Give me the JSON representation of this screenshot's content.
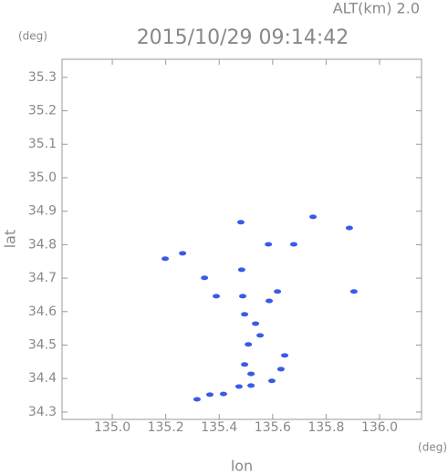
{
  "chart_data": {
    "type": "scatter",
    "title": "2015/10/29 09:14:42",
    "subtitle": "ALT(km) 2.0",
    "y_unit": "(deg)",
    "x_unit": "(deg)",
    "xlabel": "lon",
    "ylabel": "lat",
    "color": "#3a5ae8",
    "x": [
      135.198,
      135.263,
      135.345,
      135.389,
      135.488,
      135.495,
      135.536,
      135.509,
      135.553,
      135.587,
      135.618,
      135.584,
      135.751,
      135.904,
      135.887,
      135.645,
      135.631,
      135.597,
      135.519,
      135.519,
      135.474,
      135.416,
      135.365,
      135.317,
      135.495,
      135.481,
      135.679,
      135.484
    ],
    "y": [
      34.758,
      34.774,
      34.701,
      34.646,
      34.646,
      34.592,
      34.564,
      34.502,
      34.529,
      34.632,
      34.66,
      34.801,
      34.883,
      34.66,
      34.85,
      34.469,
      34.428,
      34.393,
      34.414,
      34.379,
      34.376,
      34.354,
      34.352,
      34.338,
      34.442,
      34.867,
      34.801,
      34.725
    ],
    "xlim": [
      134.812,
      136.157
    ],
    "ylim": [
      34.278,
      35.354
    ],
    "xticks": [
      {
        "value": 135,
        "label": "135.0"
      },
      135.2,
      135.4,
      135.6,
      135.8,
      {
        "value": 136,
        "label": "136.0"
      }
    ],
    "yticks": [
      34.3,
      34.4,
      34.5,
      34.6,
      34.7,
      34.8,
      34.9,
      {
        "value": 35,
        "label": "35.0"
      },
      35.1,
      35.2,
      35.3
    ]
  }
}
